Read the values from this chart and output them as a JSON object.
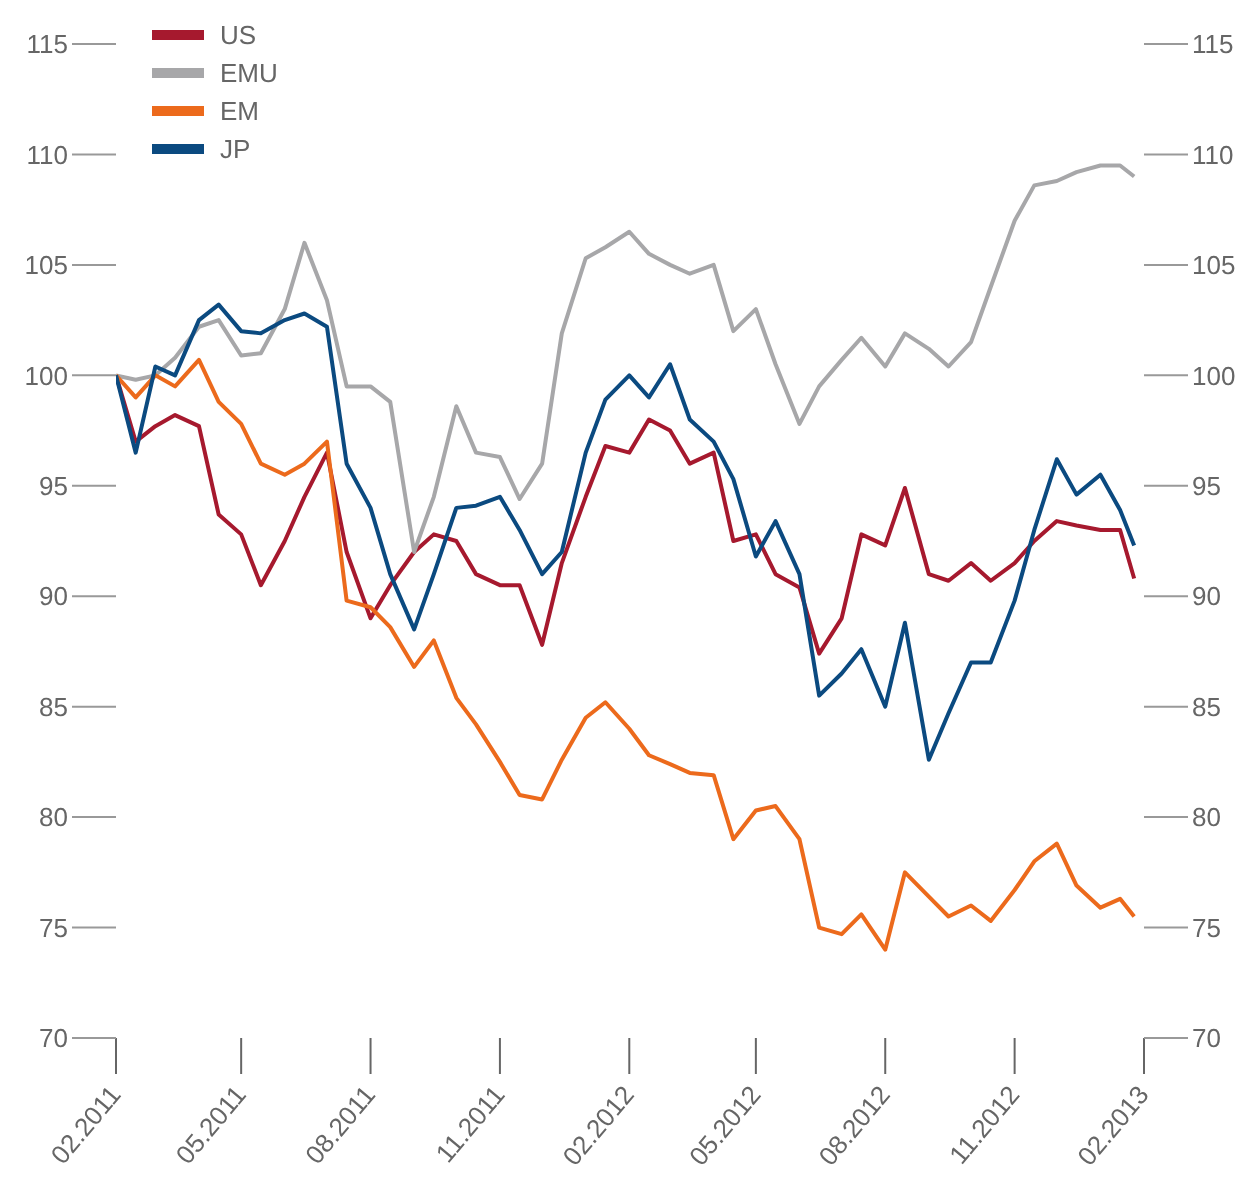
{
  "chart_data": {
    "type": "line",
    "x": [
      "2011-02-01",
      "2011-02-15",
      "2011-03-01",
      "2011-03-15",
      "2011-04-01",
      "2011-04-15",
      "2011-05-01",
      "2011-05-15",
      "2011-06-01",
      "2011-06-15",
      "2011-07-01",
      "2011-07-15",
      "2011-08-01",
      "2011-08-15",
      "2011-09-01",
      "2011-09-15",
      "2011-10-01",
      "2011-10-15",
      "2011-11-01",
      "2011-11-15",
      "2011-12-01",
      "2011-12-15",
      "2012-01-01",
      "2012-01-15",
      "2012-02-01",
      "2012-02-15",
      "2012-03-01",
      "2012-03-15",
      "2012-04-01",
      "2012-04-15",
      "2012-05-01",
      "2012-05-15",
      "2012-06-01",
      "2012-06-15",
      "2012-07-01",
      "2012-07-15",
      "2012-08-01",
      "2012-08-15",
      "2012-09-01",
      "2012-09-15",
      "2012-10-01",
      "2012-10-15",
      "2012-11-01",
      "2012-11-15",
      "2012-12-01",
      "2012-12-15",
      "2013-01-01",
      "2013-01-15",
      "2013-01-25"
    ],
    "series": [
      {
        "name": "US",
        "color": "#a6192e",
        "values": [
          100,
          97,
          97.7,
          98.2,
          97.7,
          93.7,
          92.8,
          90.5,
          92.5,
          94.5,
          96.5,
          92,
          89,
          90.5,
          92,
          92.8,
          92.5,
          91,
          90.5,
          90.5,
          87.8,
          91.5,
          94.5,
          96.8,
          96.5,
          98,
          97.5,
          96,
          96.5,
          92.5,
          92.8,
          91,
          90.4,
          87.4,
          89,
          92.8,
          92.3,
          94.9,
          91,
          90.7,
          91.5,
          90.7,
          91.5,
          92.5,
          93.4,
          93.2,
          93,
          93,
          90.8
        ]
      },
      {
        "name": "EMU",
        "color": "#a7a7a9",
        "values": [
          100,
          99.8,
          100,
          100.8,
          102.2,
          102.5,
          100.9,
          101,
          103,
          106,
          103.4,
          99.5,
          99.5,
          98.8,
          92,
          94.5,
          98.6,
          96.5,
          96.3,
          94.4,
          96,
          101.9,
          105.3,
          105.8,
          106.5,
          105.5,
          105,
          104.6,
          105,
          102,
          103,
          100.5,
          97.8,
          99.5,
          100.7,
          101.7,
          100.4,
          101.9,
          101.2,
          100.4,
          101.5,
          104,
          107,
          108.6,
          108.8,
          109.2,
          109.5,
          109.5,
          109
        ]
      },
      {
        "name": "EM",
        "color": "#ec6a1c",
        "values": [
          100,
          99,
          100,
          99.5,
          100.7,
          98.8,
          97.8,
          96,
          95.5,
          96,
          97,
          89.8,
          89.5,
          88.6,
          86.8,
          88,
          85.4,
          84.2,
          82.5,
          81,
          80.8,
          82.6,
          84.5,
          85.2,
          84,
          82.8,
          82.4,
          82,
          81.9,
          79,
          80.3,
          80.5,
          79,
          75,
          74.7,
          75.6,
          74,
          77.5,
          76.4,
          75.5,
          76,
          75.3,
          76.7,
          78,
          78.8,
          76.9,
          75.9,
          76.3,
          75.5
        ]
      },
      {
        "name": "JP",
        "color": "#0b4a80",
        "values": [
          100,
          96.5,
          100.4,
          100,
          102.5,
          103.2,
          102,
          101.9,
          102.5,
          102.8,
          102.2,
          96,
          94,
          91,
          88.5,
          91,
          94,
          94.1,
          94.5,
          93,
          91,
          92,
          96.5,
          98.9,
          100,
          99,
          100.5,
          98,
          97,
          95.3,
          91.8,
          93.4,
          91,
          85.5,
          86.5,
          87.6,
          85,
          88.8,
          82.6,
          84.7,
          87,
          87,
          89.8,
          93,
          96.2,
          94.6,
          95.5,
          93.9,
          92.3
        ]
      }
    ],
    "xlim": [
      "2011-02-01",
      "2013-02-01"
    ],
    "xticks": [
      {
        "value": "2011-02-01",
        "label": "02.2011"
      },
      {
        "value": "2011-05-01",
        "label": "05.2011"
      },
      {
        "value": "2011-08-01",
        "label": "08.2011"
      },
      {
        "value": "2011-11-01",
        "label": "11.2011"
      },
      {
        "value": "2012-02-01",
        "label": "02.2012"
      },
      {
        "value": "2012-05-01",
        "label": "05.2012"
      },
      {
        "value": "2012-08-01",
        "label": "08.2012"
      },
      {
        "value": "2012-11-01",
        "label": "11.2012"
      },
      {
        "value": "2013-02-01",
        "label": "02.2013"
      }
    ],
    "ylim": [
      70,
      115
    ],
    "yticks": [
      70,
      75,
      80,
      85,
      90,
      95,
      100,
      105,
      110,
      115
    ],
    "y2lim": [
      70,
      115
    ],
    "y2ticks": [
      70,
      75,
      80,
      85,
      90,
      95,
      100,
      105,
      110,
      115
    ],
    "legend": "top left"
  }
}
